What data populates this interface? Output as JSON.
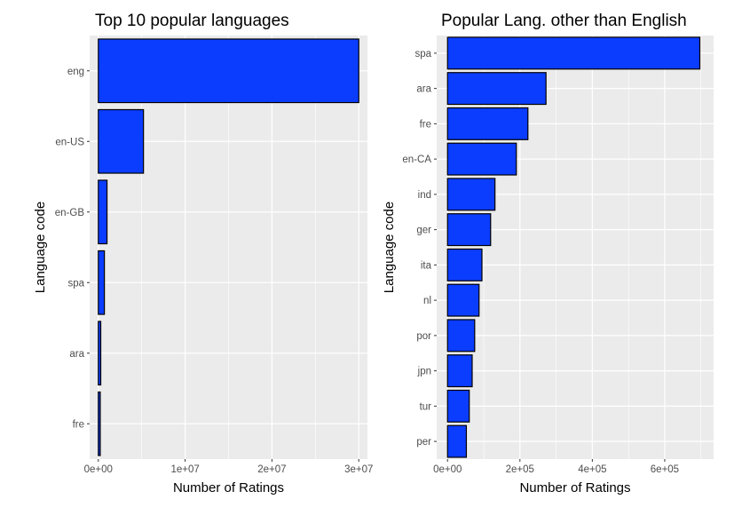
{
  "chart_data": [
    {
      "type": "bar",
      "orientation": "horizontal",
      "title": "Top 10 popular languages",
      "xlabel": "Number of Ratings",
      "ylabel": "Language code",
      "categories": [
        "eng",
        "en-US",
        "en-GB",
        "spa",
        "ara",
        "fre"
      ],
      "values": [
        30000000,
        5200000,
        1000000,
        700000,
        280000,
        220000
      ],
      "xlim": [
        -1000000,
        31000000
      ],
      "xticks": [
        0,
        10000000,
        20000000,
        30000000
      ],
      "xtick_labels": [
        "0e+00",
        "1e+07",
        "2e+07",
        "3e+07"
      ],
      "grid": true,
      "bar_color": "#0b3dff",
      "bar_edge_color": "#000000",
      "panel_color": "#ebebeb",
      "grid_color": "#ffffff"
    },
    {
      "type": "bar",
      "orientation": "horizontal",
      "title": "Popular Lang. other than English",
      "xlabel": "Number of Ratings",
      "ylabel": "Language code",
      "categories": [
        "spa",
        "ara",
        "fre",
        "en-CA",
        "ind",
        "ger",
        "ita",
        "nl",
        "por",
        "jpn",
        "tur",
        "per"
      ],
      "values": [
        697000,
        272000,
        222000,
        190000,
        131000,
        119000,
        95000,
        87000,
        75000,
        68000,
        60000,
        52000
      ],
      "xlim": [
        -30000,
        735000
      ],
      "xticks": [
        0,
        200000,
        400000,
        600000
      ],
      "xtick_labels": [
        "0e+00",
        "2e+05",
        "4e+05",
        "6e+05"
      ],
      "grid": true,
      "bar_color": "#0b3dff",
      "bar_edge_color": "#000000",
      "panel_color": "#ebebeb",
      "grid_color": "#ffffff"
    }
  ]
}
